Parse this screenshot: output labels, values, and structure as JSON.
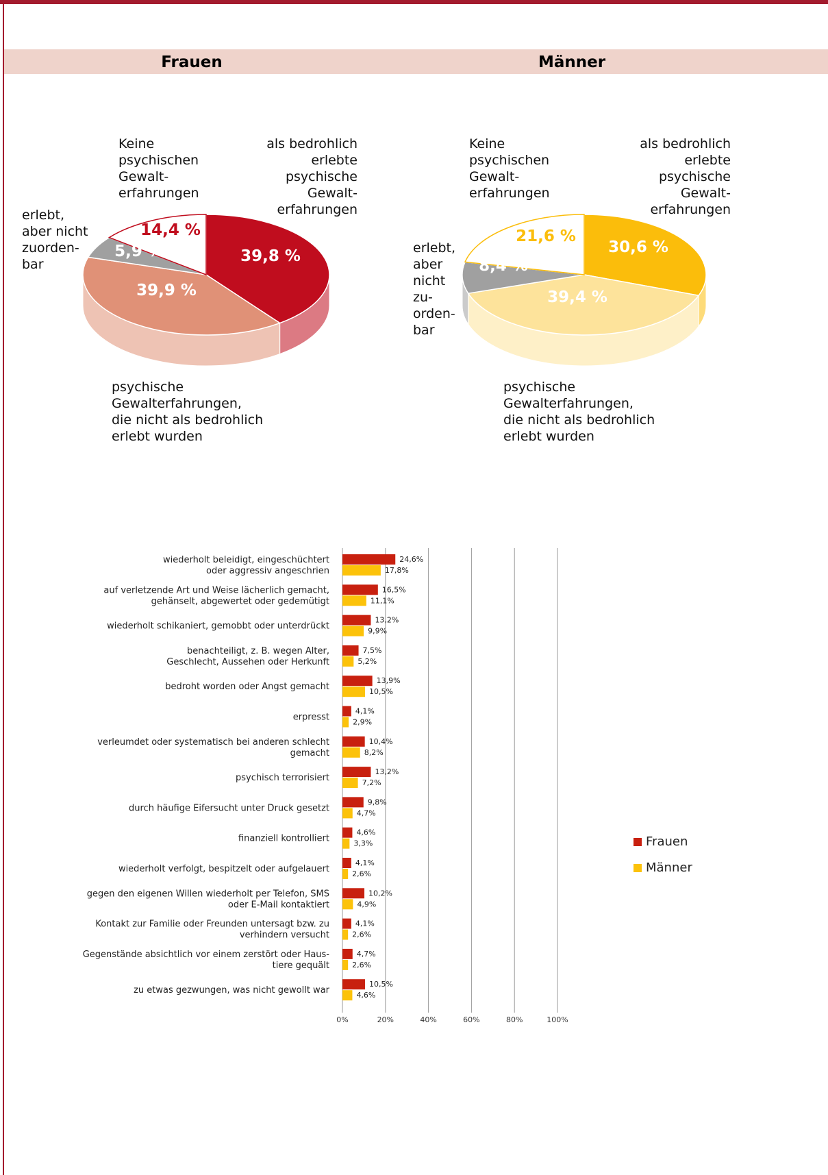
{
  "chart_data": [
    {
      "type": "pie",
      "title": "Frauen",
      "categories": [
        "als bedrohlich\nerlebte\npsychische\nGewalt-\nerfahrungen",
        "psychische\nGewalterfahrungen,\ndie nicht als bedrohlich\nerlebt wurden",
        "erlebt,\naber nicht\nzuorden-\nbar",
        "Keine\npsychischen\nGewalt-\nerfahrungen"
      ],
      "values": [
        39.8,
        39.9,
        5.9,
        14.4
      ],
      "value_labels": [
        "39,8 %",
        "39,9 %",
        "5,9 %",
        "14,4 %"
      ],
      "colors": [
        "#c00d1e",
        "#e09177",
        "#a0a0a0",
        "#ffffff"
      ]
    },
    {
      "type": "pie",
      "title": "Männer",
      "categories": [
        "als bedrohlich\nerlebte\npsychische\nGewalt-\nerfahrungen",
        "psychische\nGewalterfahrungen,\ndie nicht als bedrohlich\nerlebt wurden",
        "erlebt,\naber\nnicht\nzu-\norden-\nbar",
        "Keine\npsychischen\nGewalt-\nerfahrungen"
      ],
      "values": [
        30.6,
        39.4,
        8.4,
        21.6
      ],
      "value_labels": [
        "30,6 %",
        "39,4 %",
        "8,4 %",
        "21,6 %"
      ],
      "colors": [
        "#fbbd0b",
        "#fde39b",
        "#a0a0a0",
        "#ffffff"
      ]
    },
    {
      "type": "hbar",
      "categories": [
        "wiederholt beleidigt, eingeschüchtert\noder aggressiv angeschrien",
        "auf verletzende Art und Weise lächerlich gemacht,\ngehänselt, abgewertet oder gedemütigt",
        "wiederholt schikaniert, gemobbt oder unterdrückt",
        "benachteiligt, z. B. wegen Alter,\nGeschlecht, Aussehen oder Herkunft",
        "bedroht worden oder Angst gemacht",
        "erpresst",
        "verleumdet oder systematisch bei anderen schlecht\ngemacht",
        "psychisch terrorisiert",
        "durch häufige Eifersucht unter Druck gesetzt",
        "finanziell kontrolliert",
        "wiederholt verfolgt, bespitzelt oder aufgelauert",
        "gegen den eigenen Willen wiederholt per Telefon, SMS\noder E-Mail kontaktiert",
        "Kontakt zur Familie oder Freunden untersagt bzw. zu\nverhindern versucht",
        "Gegenstände absichtlich vor einem zerstört oder Haus-\ntiere gequält",
        "zu etwas gezwungen, was nicht gewollt war"
      ],
      "series": [
        {
          "name": "Frauen",
          "color": "#c8200f",
          "values": [
            24.6,
            16.5,
            13.2,
            7.5,
            13.9,
            4.1,
            10.4,
            13.2,
            9.8,
            4.6,
            4.1,
            10.2,
            4.1,
            4.7,
            10.5
          ],
          "value_labels": [
            "24,6%",
            "16,5%",
            "13,2%",
            "7,5%",
            "13,9%",
            "4,1%",
            "10,4%",
            "13,2%",
            "9,8%",
            "4,6%",
            "4,1%",
            "10,2%",
            "4,1%",
            "4,7%",
            "10,5%"
          ]
        },
        {
          "name": "Männer",
          "color": "#fcc20a",
          "values": [
            17.8,
            11.1,
            9.9,
            5.2,
            10.5,
            2.9,
            8.2,
            7.2,
            4.7,
            3.3,
            2.6,
            4.9,
            2.6,
            2.6,
            4.6
          ],
          "value_labels": [
            "17,8%",
            "11,1%",
            "9,9%",
            "5,2%",
            "10,5%",
            "2,9%",
            "8,2%",
            "7,2%",
            "4,7%",
            "3,3%",
            "2,6%",
            "4,9%",
            "2,6%",
            "2,6%",
            "4,6%"
          ]
        }
      ],
      "xlim": [
        0,
        100
      ],
      "xticks": [
        {
          "value": 0,
          "label": "0%"
        },
        {
          "value": 20,
          "label": "20%"
        },
        {
          "value": 40,
          "label": "40%"
        },
        {
          "value": 60,
          "label": "60%"
        },
        {
          "value": 80,
          "label": "80%"
        },
        {
          "value": 100,
          "label": "100%"
        }
      ],
      "grid": true,
      "legend": "right"
    }
  ]
}
